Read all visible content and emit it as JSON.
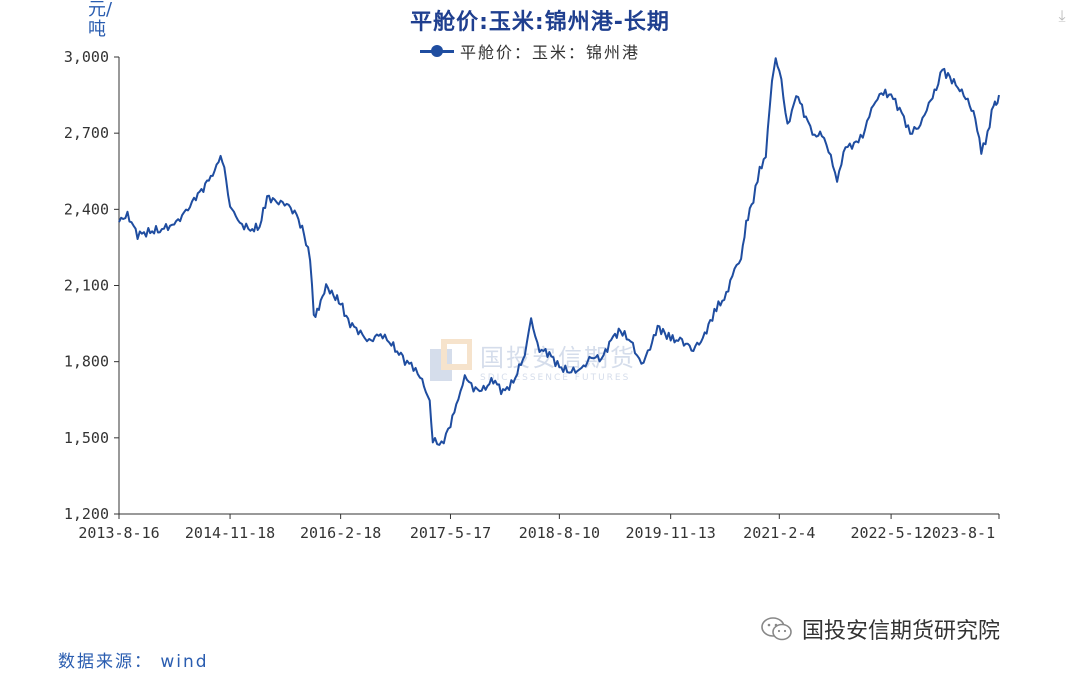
{
  "header": {
    "title": "平舱价:玉米:锦州港-长期",
    "unit": "元/吨",
    "download_icon": "download-icon"
  },
  "legend": {
    "label": "平舱价：玉米：锦州港"
  },
  "footer": {
    "source": "数据来源： wind",
    "brand": "国投安信期货研究院",
    "brand_icon": "wechat-icon"
  },
  "watermark": {
    "cn": "国投安信期货",
    "en": "SDIC ESSENCE FUTURES"
  },
  "colors": {
    "series": "#1f4da0",
    "title": "#1f3f8f",
    "axis": "#333333"
  },
  "chart_data": {
    "type": "line",
    "title": "平舱价:玉米:锦州港-长期",
    "ylabel": "元/吨",
    "ylim": [
      1200,
      3000
    ],
    "yticks": [
      1200,
      1500,
      1800,
      2100,
      2400,
      2700,
      3000
    ],
    "ytick_labels": [
      "1,200",
      "1,500",
      "1,800",
      "2,100",
      "2,400",
      "2,700",
      "3,000"
    ],
    "xlim": [
      "2013-08-16",
      "2023-08-01"
    ],
    "xticks": [
      "2013-08-16",
      "2014-11-18",
      "2016-02-18",
      "2017-05-17",
      "2018-08-10",
      "2019-11-13",
      "2021-02-04",
      "2022-05-12",
      "2023-08-01"
    ],
    "xtick_labels": [
      "2013-8-16",
      "2014-11-18",
      "2016-2-18",
      "2017-5-17",
      "2018-8-10",
      "2019-11-13",
      "2021-2-4",
      "2022-5-12",
      "2023-8-1"
    ],
    "grid": false,
    "legend_position": "top-center",
    "series": [
      {
        "name": "平舱价：玉米：锦州港",
        "points": [
          [
            "2013-08-16",
            2350
          ],
          [
            "2013-09-20",
            2380
          ],
          [
            "2013-11-01",
            2300
          ],
          [
            "2013-12-15",
            2310
          ],
          [
            "2014-02-01",
            2320
          ],
          [
            "2014-04-01",
            2340
          ],
          [
            "2014-05-20",
            2390
          ],
          [
            "2014-06-30",
            2450
          ],
          [
            "2014-08-15",
            2500
          ],
          [
            "2014-09-15",
            2560
          ],
          [
            "2014-10-10",
            2610
          ],
          [
            "2014-10-25",
            2560
          ],
          [
            "2014-11-18",
            2420
          ],
          [
            "2014-12-20",
            2350
          ],
          [
            "2015-02-10",
            2320
          ],
          [
            "2015-03-20",
            2330
          ],
          [
            "2015-04-20",
            2450
          ],
          [
            "2015-05-30",
            2430
          ],
          [
            "2015-07-10",
            2420
          ],
          [
            "2015-08-20",
            2380
          ],
          [
            "2015-09-20",
            2300
          ],
          [
            "2015-10-15",
            2200
          ],
          [
            "2015-10-30",
            1980
          ],
          [
            "2015-11-20",
            2010
          ],
          [
            "2015-12-20",
            2100
          ],
          [
            "2016-01-20",
            2060
          ],
          [
            "2016-02-18",
            2030
          ],
          [
            "2016-03-20",
            1960
          ],
          [
            "2016-05-01",
            1920
          ],
          [
            "2016-06-15",
            1880
          ],
          [
            "2016-08-01",
            1910
          ],
          [
            "2016-09-15",
            1870
          ],
          [
            "2016-11-01",
            1810
          ],
          [
            "2016-12-15",
            1780
          ],
          [
            "2017-01-20",
            1720
          ],
          [
            "2017-02-20",
            1650
          ],
          [
            "2017-03-05",
            1490
          ],
          [
            "2017-04-10",
            1470
          ],
          [
            "2017-05-17",
            1560
          ],
          [
            "2017-06-10",
            1620
          ],
          [
            "2017-07-15",
            1750
          ],
          [
            "2017-08-20",
            1690
          ],
          [
            "2017-10-01",
            1690
          ],
          [
            "2017-11-10",
            1730
          ],
          [
            "2017-12-20",
            1680
          ],
          [
            "2018-02-01",
            1720
          ],
          [
            "2018-03-20",
            1830
          ],
          [
            "2018-04-15",
            1960
          ],
          [
            "2018-05-20",
            1850
          ],
          [
            "2018-06-30",
            1830
          ],
          [
            "2018-08-10",
            1780
          ],
          [
            "2018-09-20",
            1760
          ],
          [
            "2018-11-10",
            1770
          ],
          [
            "2018-12-20",
            1820
          ],
          [
            "2019-02-01",
            1810
          ],
          [
            "2019-03-20",
            1900
          ],
          [
            "2019-04-20",
            1920
          ],
          [
            "2019-06-01",
            1880
          ],
          [
            "2019-07-15",
            1790
          ],
          [
            "2019-08-20",
            1850
          ],
          [
            "2019-09-20",
            1940
          ],
          [
            "2019-10-20",
            1910
          ],
          [
            "2019-11-13",
            1890
          ],
          [
            "2019-12-30",
            1880
          ],
          [
            "2020-02-15",
            1850
          ],
          [
            "2020-03-25",
            1890
          ],
          [
            "2020-04-25",
            1960
          ],
          [
            "2020-05-20",
            2010
          ],
          [
            "2020-06-30",
            2060
          ],
          [
            "2020-07-25",
            2150
          ],
          [
            "2020-08-30",
            2200
          ],
          [
            "2020-09-20",
            2350
          ],
          [
            "2020-10-20",
            2440
          ],
          [
            "2020-11-15",
            2550
          ],
          [
            "2020-12-10",
            2620
          ],
          [
            "2021-01-05",
            2900
          ],
          [
            "2021-01-20",
            2990
          ],
          [
            "2021-02-04",
            2960
          ],
          [
            "2021-03-10",
            2720
          ],
          [
            "2021-04-15",
            2860
          ],
          [
            "2021-05-25",
            2760
          ],
          [
            "2021-06-30",
            2690
          ],
          [
            "2021-07-30",
            2700
          ],
          [
            "2021-09-05",
            2600
          ],
          [
            "2021-10-01",
            2520
          ],
          [
            "2021-11-05",
            2640
          ],
          [
            "2021-12-10",
            2660
          ],
          [
            "2022-01-15",
            2690
          ],
          [
            "2022-02-20",
            2790
          ],
          [
            "2022-03-25",
            2860
          ],
          [
            "2022-05-12",
            2850
          ],
          [
            "2022-06-25",
            2780
          ],
          [
            "2022-07-30",
            2700
          ],
          [
            "2022-09-10",
            2730
          ],
          [
            "2022-10-15",
            2820
          ],
          [
            "2022-11-15",
            2870
          ],
          [
            "2022-12-10",
            2950
          ],
          [
            "2023-01-10",
            2920
          ],
          [
            "2023-02-20",
            2870
          ],
          [
            "2023-03-25",
            2830
          ],
          [
            "2023-04-25",
            2760
          ],
          [
            "2023-05-20",
            2620
          ],
          [
            "2023-06-15",
            2700
          ],
          [
            "2023-07-10",
            2820
          ],
          [
            "2023-07-20",
            2800
          ],
          [
            "2023-08-01",
            2850
          ]
        ]
      }
    ]
  }
}
